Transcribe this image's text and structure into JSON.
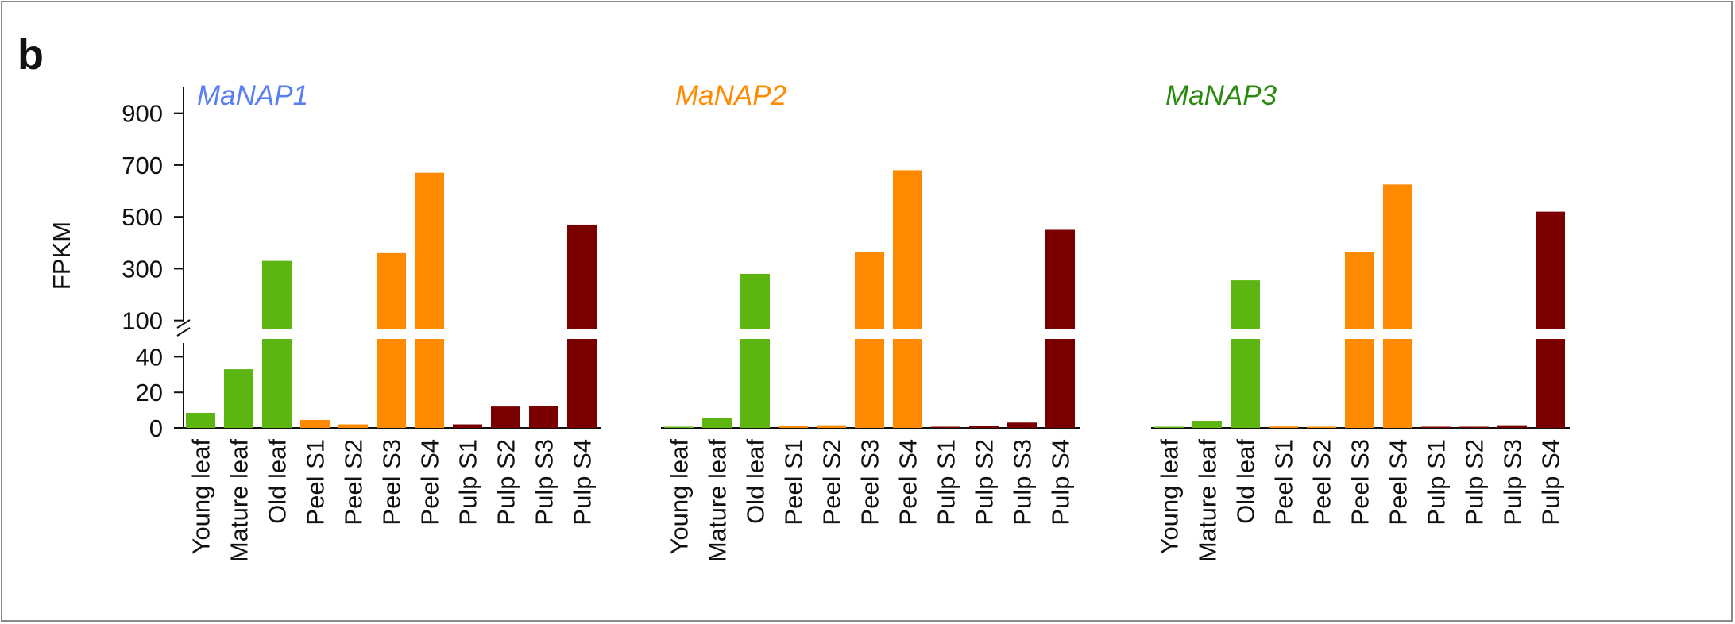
{
  "panel_label": "b",
  "chart_data": {
    "type": "bar",
    "ylabel": "FPKM",
    "y_axis_break": true,
    "lower_ylim": [
      0,
      50
    ],
    "lower_yticks": [
      0,
      20,
      40
    ],
    "upper_ylim": [
      50,
      1000
    ],
    "upper_yticks": [
      100,
      300,
      500,
      700,
      900
    ],
    "categories": [
      "Young leaf",
      "Mature leaf",
      "Old leaf",
      "Peel S1",
      "Peel S2",
      "Peel S3",
      "Peel S4",
      "Pulp S1",
      "Pulp S2",
      "Pulp S3",
      "Pulp S4"
    ],
    "category_colors": [
      "#5cb510",
      "#5cb510",
      "#5cb510",
      "#ff8a00",
      "#ff8a00",
      "#ff8a00",
      "#ff8a00",
      "#7a0000",
      "#7a0000",
      "#7a0000",
      "#7a0000"
    ],
    "series": [
      {
        "name": "MaNAP1",
        "title_color": "#5a7ff0",
        "values": [
          8.5,
          33,
          330,
          4.5,
          2,
          360,
          670,
          2,
          12,
          12.5,
          470
        ]
      },
      {
        "name": "MaNAP2",
        "title_color": "#ff8a00",
        "values": [
          0.5,
          5.5,
          280,
          1.2,
          1.5,
          365,
          680,
          0.3,
          1,
          3,
          450
        ]
      },
      {
        "name": "MaNAP3",
        "title_color": "#2a8a10",
        "values": [
          0.3,
          4,
          255,
          0.8,
          0.5,
          365,
          625,
          0.2,
          0.2,
          1.5,
          520
        ]
      }
    ],
    "grid": false,
    "legend": "none"
  }
}
